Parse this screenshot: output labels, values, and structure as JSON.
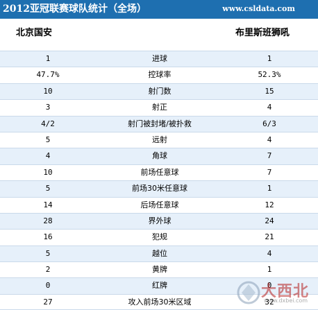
{
  "header": {
    "title": "2012亚冠联赛球队统计（全场）",
    "site": "www.csldata.com"
  },
  "teams": {
    "left": "北京国安",
    "right": "布里斯班狮吼"
  },
  "rows": [
    {
      "left": "1",
      "label": "进球",
      "right": "1"
    },
    {
      "left": "47.7%",
      "label": "控球率",
      "right": "52.3%"
    },
    {
      "left": "10",
      "label": "射门数",
      "right": "15"
    },
    {
      "left": "3",
      "label": "射正",
      "right": "4"
    },
    {
      "left": "4/2",
      "label": "射门被封堵/被扑救",
      "right": "6/3"
    },
    {
      "left": "5",
      "label": "远射",
      "right": "4"
    },
    {
      "left": "4",
      "label": "角球",
      "right": "7"
    },
    {
      "left": "10",
      "label": "前场任意球",
      "right": "7"
    },
    {
      "left": "5",
      "label": "前场30米任意球",
      "right": "1"
    },
    {
      "left": "14",
      "label": "后场任意球",
      "right": "12"
    },
    {
      "left": "28",
      "label": "界外球",
      "right": "24"
    },
    {
      "left": "16",
      "label": "犯规",
      "right": "21"
    },
    {
      "left": "5",
      "label": "越位",
      "right": "4"
    },
    {
      "left": "2",
      "label": "黄牌",
      "right": "1"
    },
    {
      "left": "0",
      "label": "红牌",
      "right": "0"
    },
    {
      "left": "27",
      "label": "攻入前场30米区域",
      "right": "32"
    }
  ],
  "watermark": {
    "text": "大西北",
    "url": "www.dxbei.com"
  },
  "colors": {
    "title_bg": "#1e6fb0",
    "row_alt_bg": "#e6f0fa",
    "row_border": "#c9d9ea"
  }
}
